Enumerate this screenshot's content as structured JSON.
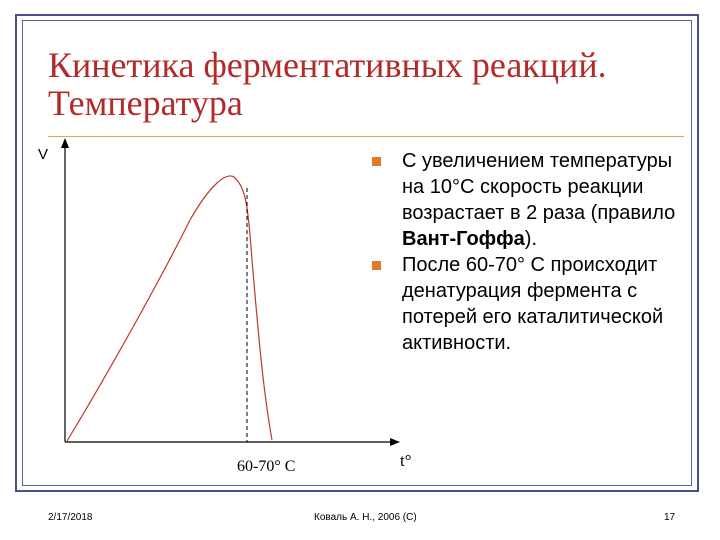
{
  "slide": {
    "title_line1": "Кинетика ферментативных реакций.",
    "title_line2": "Температура",
    "axis_y_label": "V",
    "axis_x_label": "t°",
    "peak_label": "60-70° C",
    "bullets": [
      {
        "pre": "С увеличением температуры на 10°С скорость реакции возрастает в 2 раза (правило ",
        "bold": "Вант-Гоффа",
        "post": ")."
      },
      {
        "pre": "После 60-70° С происходит денатурация фермента с потерей его каталитической активности.",
        "bold": "",
        "post": ""
      }
    ]
  },
  "footer": {
    "date": "2/17/2018",
    "author": "Коваль А. Н., 2006 (C)",
    "page": "17"
  },
  "colors": {
    "title": "#b32a2a",
    "curve": "#c0392b",
    "bullet": "#e07a2a",
    "frame": "#4a4f8c",
    "rule": "#e0a64a"
  }
}
